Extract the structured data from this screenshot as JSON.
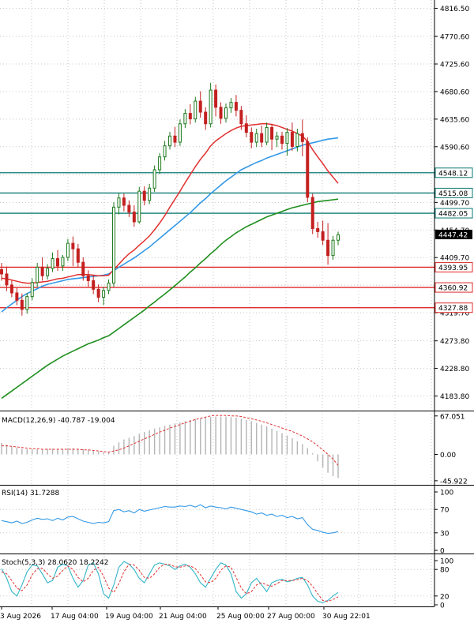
{
  "chart_data": [
    {
      "type": "candlestick",
      "panel": "price",
      "price_ticks": [
        "4816.50",
        "4770.60",
        "4725.60",
        "4680.60",
        "4635.60",
        "4590.60",
        "4544.70",
        "4499.70",
        "4454.70",
        "4409.70",
        "4364.70",
        "4319.70",
        "4273.80",
        "4228.80",
        "4183.80"
      ],
      "ylim": [
        4160,
        4830
      ],
      "candles": [
        {
          "o": 4390,
          "h": 4401,
          "c": 4383,
          "l": 4372
        },
        {
          "o": 4383,
          "h": 4395,
          "c": 4365,
          "l": 4355
        },
        {
          "o": 4365,
          "h": 4372,
          "c": 4352,
          "l": 4345
        },
        {
          "o": 4352,
          "h": 4360,
          "c": 4340,
          "l": 4332
        },
        {
          "o": 4340,
          "h": 4351,
          "c": 4325,
          "l": 4315
        },
        {
          "o": 4325,
          "h": 4352,
          "c": 4346,
          "l": 4318
        },
        {
          "o": 4346,
          "h": 4376,
          "c": 4369,
          "l": 4340
        },
        {
          "o": 4369,
          "h": 4401,
          "c": 4394,
          "l": 4362
        },
        {
          "o": 4394,
          "h": 4410,
          "c": 4380,
          "l": 4372
        },
        {
          "o": 4380,
          "h": 4399,
          "c": 4392,
          "l": 4374
        },
        {
          "o": 4392,
          "h": 4418,
          "c": 4408,
          "l": 4386
        },
        {
          "o": 4408,
          "h": 4422,
          "c": 4396,
          "l": 4388
        },
        {
          "o": 4396,
          "h": 4414,
          "c": 4410,
          "l": 4388
        },
        {
          "o": 4410,
          "h": 4440,
          "c": 4433,
          "l": 4404
        },
        {
          "o": 4433,
          "h": 4444,
          "c": 4424,
          "l": 4396
        },
        {
          "o": 4424,
          "h": 4432,
          "c": 4402,
          "l": 4394
        },
        {
          "o": 4402,
          "h": 4410,
          "c": 4380,
          "l": 4372
        },
        {
          "o": 4380,
          "h": 4389,
          "c": 4372,
          "l": 4362
        },
        {
          "o": 4372,
          "h": 4381,
          "c": 4358,
          "l": 4350
        },
        {
          "o": 4358,
          "h": 4366,
          "c": 4345,
          "l": 4337
        },
        {
          "o": 4345,
          "h": 4362,
          "c": 4356,
          "l": 4332
        },
        {
          "o": 4356,
          "h": 4374,
          "c": 4368,
          "l": 4350
        },
        {
          "o": 4368,
          "h": 4500,
          "c": 4492,
          "l": 4362
        },
        {
          "o": 4492,
          "h": 4515,
          "c": 4507,
          "l": 4480
        },
        {
          "o": 4507,
          "h": 4514,
          "c": 4495,
          "l": 4485
        },
        {
          "o": 4495,
          "h": 4503,
          "c": 4484,
          "l": 4476
        },
        {
          "o": 4484,
          "h": 4495,
          "c": 4468,
          "l": 4460
        },
        {
          "o": 4468,
          "h": 4525,
          "c": 4518,
          "l": 4465
        },
        {
          "o": 4518,
          "h": 4526,
          "c": 4503,
          "l": 4495
        },
        {
          "o": 4503,
          "h": 4530,
          "c": 4523,
          "l": 4497
        },
        {
          "o": 4523,
          "h": 4560,
          "c": 4553,
          "l": 4517
        },
        {
          "o": 4553,
          "h": 4580,
          "c": 4574,
          "l": 4546
        },
        {
          "o": 4574,
          "h": 4600,
          "c": 4592,
          "l": 4568
        },
        {
          "o": 4592,
          "h": 4615,
          "c": 4608,
          "l": 4586
        },
        {
          "o": 4608,
          "h": 4623,
          "c": 4598,
          "l": 4590
        },
        {
          "o": 4598,
          "h": 4635,
          "c": 4628,
          "l": 4592
        },
        {
          "o": 4628,
          "h": 4652,
          "c": 4645,
          "l": 4621
        },
        {
          "o": 4645,
          "h": 4660,
          "c": 4636,
          "l": 4627
        },
        {
          "o": 4636,
          "h": 4672,
          "c": 4665,
          "l": 4630
        },
        {
          "o": 4665,
          "h": 4681,
          "c": 4647,
          "l": 4638
        },
        {
          "o": 4647,
          "h": 4655,
          "c": 4628,
          "l": 4618
        },
        {
          "o": 4628,
          "h": 4695,
          "c": 4683,
          "l": 4622
        },
        {
          "o": 4683,
          "h": 4692,
          "c": 4655,
          "l": 4640
        },
        {
          "o": 4655,
          "h": 4663,
          "c": 4637,
          "l": 4628
        },
        {
          "o": 4637,
          "h": 4661,
          "c": 4654,
          "l": 4630
        },
        {
          "o": 4654,
          "h": 4670,
          "c": 4663,
          "l": 4646
        },
        {
          "o": 4663,
          "h": 4675,
          "c": 4650,
          "l": 4640
        },
        {
          "o": 4650,
          "h": 4657,
          "c": 4628,
          "l": 4618
        },
        {
          "o": 4628,
          "h": 4642,
          "c": 4614,
          "l": 4606
        },
        {
          "o": 4614,
          "h": 4622,
          "c": 4598,
          "l": 4588
        },
        {
          "o": 4598,
          "h": 4620,
          "c": 4612,
          "l": 4590
        },
        {
          "o": 4612,
          "h": 4625,
          "c": 4598,
          "l": 4590
        },
        {
          "o": 4598,
          "h": 4630,
          "c": 4622,
          "l": 4593
        },
        {
          "o": 4622,
          "h": 4628,
          "c": 4603,
          "l": 4585
        },
        {
          "o": 4603,
          "h": 4615,
          "c": 4608,
          "l": 4590
        },
        {
          "o": 4608,
          "h": 4615,
          "c": 4596,
          "l": 4586
        },
        {
          "o": 4596,
          "h": 4621,
          "c": 4614,
          "l": 4576
        },
        {
          "o": 4614,
          "h": 4630,
          "c": 4591,
          "l": 4584
        },
        {
          "o": 4591,
          "h": 4620,
          "c": 4612,
          "l": 4583
        },
        {
          "o": 4612,
          "h": 4635,
          "c": 4599,
          "l": 4575
        },
        {
          "o": 4599,
          "h": 4606,
          "c": 4508,
          "l": 4500
        },
        {
          "o": 4508,
          "h": 4514,
          "c": 4457,
          "l": 4448
        },
        {
          "o": 4457,
          "h": 4468,
          "c": 4452,
          "l": 4442
        },
        {
          "o": 4452,
          "h": 4470,
          "c": 4438,
          "l": 4430
        },
        {
          "o": 4438,
          "h": 4466,
          "c": 4413,
          "l": 4398
        },
        {
          "o": 4413,
          "h": 4445,
          "c": 4438,
          "l": 4406
        },
        {
          "o": 4438,
          "h": 4452,
          "c": 4447,
          "l": 4430
        }
      ],
      "ma_red": [
        4376,
        4375,
        4373,
        4371,
        4369,
        4368,
        4368,
        4369,
        4370,
        4371,
        4373,
        4375,
        4376,
        4378,
        4380,
        4382,
        4382,
        4382,
        4381,
        4380,
        4380,
        4381,
        4390,
        4399,
        4408,
        4416,
        4422,
        4430,
        4437,
        4445,
        4455,
        4466,
        4478,
        4492,
        4505,
        4518,
        4532,
        4545,
        4558,
        4570,
        4580,
        4592,
        4600,
        4606,
        4612,
        4617,
        4621,
        4624,
        4625,
        4626,
        4627,
        4628,
        4628,
        4627,
        4625,
        4622,
        4619,
        4616,
        4612,
        4608,
        4599,
        4586,
        4574,
        4563,
        4551,
        4541,
        4531
      ],
      "ma_blue": [
        4321,
        4328,
        4334,
        4340,
        4346,
        4351,
        4355,
        4359,
        4363,
        4366,
        4368,
        4370,
        4372,
        4374,
        4375,
        4376,
        4377,
        4378,
        4379,
        4380,
        4381,
        4383,
        4388,
        4394,
        4399,
        4404,
        4409,
        4415,
        4421,
        4427,
        4434,
        4441,
        4448,
        4455,
        4462,
        4469,
        4476,
        4483,
        4491,
        4499,
        4506,
        4514,
        4521,
        4528,
        4535,
        4541,
        4547,
        4553,
        4557,
        4561,
        4565,
        4568,
        4572,
        4575,
        4578,
        4581,
        4584,
        4587,
        4590,
        4593,
        4595,
        4597,
        4599,
        4601,
        4603,
        4604,
        4605
      ],
      "ma_green": [
        4180,
        4186,
        4192,
        4198,
        4204,
        4210,
        4216,
        4222,
        4228,
        4234,
        4239,
        4244,
        4249,
        4253,
        4257,
        4261,
        4265,
        4269,
        4272,
        4275,
        4279,
        4282,
        4288,
        4294,
        4300,
        4306,
        4312,
        4318,
        4324,
        4331,
        4337,
        4344,
        4350,
        4357,
        4364,
        4371,
        4378,
        4386,
        4393,
        4401,
        4408,
        4416,
        4423,
        4431,
        4438,
        4444,
        4450,
        4455,
        4460,
        4464,
        4468,
        4472,
        4476,
        4479,
        4482,
        4485,
        4488,
        4491,
        4493,
        4495,
        4497,
        4499,
        4501,
        4502,
        4503,
        4504,
        4505
      ],
      "hlines": [
        {
          "value": 4548.12,
          "label": "4548.12",
          "color": "#0b7a74"
        },
        {
          "value": 4515.08,
          "label": "4515.08",
          "color": "#0b7a74"
        },
        {
          "value": 4482.05,
          "label": "4482.05",
          "color": "#0b7a74"
        },
        {
          "value": 4393.95,
          "label": "4393.95",
          "color": "#e02828"
        },
        {
          "value": 4360.92,
          "label": "4360.92",
          "color": "#e02828"
        },
        {
          "value": 4327.88,
          "label": "4327.88",
          "color": "#e02828"
        }
      ],
      "current_price": "4447.42",
      "colors": {
        "bull": "#1e7a1e",
        "bear": "#c42020",
        "ma_red": "#e23030",
        "ma_blue": "#3399e6",
        "ma_green": "#1f8f1f"
      }
    },
    {
      "type": "bar",
      "panel": "macd",
      "label": "MACD(12,26,9) -40.787 -19.004",
      "ticks": [
        "67.051",
        "0.00",
        "-45.922"
      ],
      "ylim": [
        -53,
        75
      ],
      "histogram": [
        20,
        17,
        14,
        12,
        10,
        9,
        9,
        9,
        9,
        10,
        10,
        10,
        10,
        11,
        11,
        10,
        9,
        8,
        7,
        5,
        4,
        4,
        15,
        21,
        26,
        29,
        32,
        36,
        39,
        42,
        45,
        47,
        50,
        52,
        54,
        56,
        58,
        60,
        62,
        63,
        64,
        65,
        66,
        66,
        66,
        65,
        64,
        62,
        60,
        58,
        55,
        52,
        49,
        45,
        41,
        37,
        33,
        28,
        23,
        18,
        11,
        2,
        -12,
        -23,
        -32,
        -38,
        -41
      ],
      "signal": [
        15,
        15,
        14,
        13,
        12,
        11,
        10,
        10,
        9,
        9,
        9,
        9,
        9,
        9,
        9,
        9,
        8,
        8,
        7,
        6,
        5,
        4,
        6,
        8,
        11,
        15,
        19,
        23,
        27,
        31,
        35,
        39,
        42,
        46,
        49,
        52,
        55,
        58,
        61,
        63,
        65,
        67,
        68,
        68,
        68,
        67,
        67,
        66,
        64,
        62,
        60,
        58,
        55,
        52,
        49,
        46,
        43,
        40,
        36,
        32,
        27,
        22,
        15,
        8,
        0,
        -8,
        -19
      ]
    },
    {
      "type": "line",
      "panel": "rsi",
      "label": "RSI(14) 31.7288",
      "ticks": [
        "100",
        "70",
        "30",
        "0"
      ],
      "ylim": [
        0,
        100
      ],
      "values": [
        51,
        49,
        47,
        50,
        46,
        48,
        52,
        55,
        53,
        54,
        51,
        55,
        52,
        57,
        58,
        54,
        50,
        48,
        46,
        48,
        47,
        49,
        68,
        70,
        66,
        68,
        64,
        70,
        67,
        69,
        71,
        73,
        75,
        74,
        74,
        76,
        75,
        77,
        74,
        78,
        73,
        76,
        74,
        73,
        71,
        74,
        72,
        70,
        68,
        66,
        62,
        64,
        60,
        62,
        58,
        60,
        56,
        58,
        54,
        56,
        44,
        36,
        34,
        31,
        29,
        30,
        32
      ]
    },
    {
      "type": "line",
      "panel": "stochastic",
      "label": "Stoch(5,3,3) 28.0620 18.2242",
      "ticks": [
        "100",
        "80",
        "20",
        "0"
      ],
      "ylim": [
        0,
        100
      ],
      "k": [
        82,
        60,
        30,
        20,
        45,
        75,
        90,
        88,
        70,
        50,
        55,
        85,
        92,
        88,
        60,
        40,
        55,
        90,
        95,
        70,
        25,
        15,
        45,
        85,
        98,
        92,
        80,
        60,
        50,
        70,
        90,
        95,
        92,
        88,
        80,
        88,
        92,
        85,
        70,
        50,
        40,
        60,
        80,
        95,
        90,
        70,
        30,
        15,
        25,
        50,
        60,
        45,
        30,
        50,
        55,
        58,
        52,
        55,
        60,
        62,
        45,
        20,
        8,
        5,
        10,
        20,
        28
      ],
      "d": [
        75,
        70,
        55,
        38,
        32,
        45,
        68,
        82,
        83,
        70,
        60,
        65,
        78,
        88,
        80,
        62,
        52,
        60,
        78,
        85,
        65,
        38,
        28,
        48,
        75,
        92,
        90,
        78,
        62,
        60,
        70,
        85,
        92,
        91,
        86,
        85,
        88,
        88,
        82,
        68,
        52,
        50,
        60,
        78,
        88,
        85,
        62,
        38,
        25,
        30,
        45,
        50,
        45,
        42,
        48,
        55,
        55,
        55,
        57,
        60,
        55,
        42,
        25,
        10,
        8,
        12,
        18
      ]
    },
    {
      "type": "time_axis",
      "panel": "time",
      "labels": [
        "3 Aug 2026",
        "17 Aug 04:00",
        "19 Aug 04:00",
        "21 Aug 04:00",
        "25 Aug 00:00",
        "27 Aug 00:00",
        "30 Aug 22:01"
      ]
    }
  ]
}
